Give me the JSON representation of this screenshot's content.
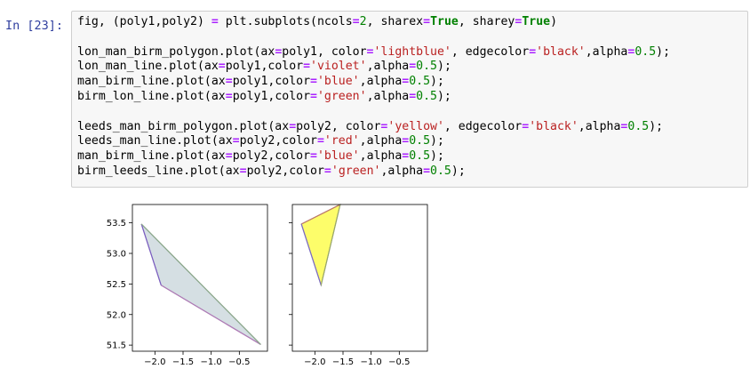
{
  "cell": {
    "prompt": "In [23]:",
    "code_lines": [
      [
        [
          "fig, (poly1,poly2) ",
          ""
        ],
        [
          "=",
          "op"
        ],
        [
          " plt.subplots(ncols",
          ""
        ],
        [
          "=",
          "op"
        ],
        [
          "2",
          "num"
        ],
        [
          ", sharex",
          ""
        ],
        [
          "=",
          "op"
        ],
        [
          "True",
          "kw"
        ],
        [
          ", sharey",
          ""
        ],
        [
          "=",
          "op"
        ],
        [
          "True",
          "kw"
        ],
        [
          ")",
          ""
        ]
      ],
      [],
      [
        [
          "lon_man_birm_polygon.plot(ax",
          ""
        ],
        [
          "=",
          "op"
        ],
        [
          "poly1, color",
          ""
        ],
        [
          "=",
          "op"
        ],
        [
          "'lightblue'",
          "str"
        ],
        [
          ", edgecolor",
          ""
        ],
        [
          "=",
          "op"
        ],
        [
          "'black'",
          "str"
        ],
        [
          ",alpha",
          ""
        ],
        [
          "=",
          "op"
        ],
        [
          "0.5",
          "num"
        ],
        [
          ");",
          ""
        ]
      ],
      [
        [
          "lon_man_line.plot(ax",
          ""
        ],
        [
          "=",
          "op"
        ],
        [
          "poly1,color",
          ""
        ],
        [
          "=",
          "op"
        ],
        [
          "'violet'",
          "str"
        ],
        [
          ",alpha",
          ""
        ],
        [
          "=",
          "op"
        ],
        [
          "0.5",
          "num"
        ],
        [
          ");",
          ""
        ]
      ],
      [
        [
          "man_birm_line.plot(ax",
          ""
        ],
        [
          "=",
          "op"
        ],
        [
          "poly1,color",
          ""
        ],
        [
          "=",
          "op"
        ],
        [
          "'blue'",
          "str"
        ],
        [
          ",alpha",
          ""
        ],
        [
          "=",
          "op"
        ],
        [
          "0.5",
          "num"
        ],
        [
          ");",
          ""
        ]
      ],
      [
        [
          "birm_lon_line.plot(ax",
          ""
        ],
        [
          "=",
          "op"
        ],
        [
          "poly1,color",
          ""
        ],
        [
          "=",
          "op"
        ],
        [
          "'green'",
          "str"
        ],
        [
          ",alpha",
          ""
        ],
        [
          "=",
          "op"
        ],
        [
          "0.5",
          "num"
        ],
        [
          ");",
          ""
        ]
      ],
      [],
      [
        [
          "leeds_man_birm_polygon.plot(ax",
          ""
        ],
        [
          "=",
          "op"
        ],
        [
          "poly2, color",
          ""
        ],
        [
          "=",
          "op"
        ],
        [
          "'yellow'",
          "str"
        ],
        [
          ", edgecolor",
          ""
        ],
        [
          "=",
          "op"
        ],
        [
          "'black'",
          "str"
        ],
        [
          ",alpha",
          ""
        ],
        [
          "=",
          "op"
        ],
        [
          "0.5",
          "num"
        ],
        [
          ");",
          ""
        ]
      ],
      [
        [
          "leeds_man_line.plot(ax",
          ""
        ],
        [
          "=",
          "op"
        ],
        [
          "poly2,color",
          ""
        ],
        [
          "=",
          "op"
        ],
        [
          "'red'",
          "str"
        ],
        [
          ",alpha",
          ""
        ],
        [
          "=",
          "op"
        ],
        [
          "0.5",
          "num"
        ],
        [
          ");",
          ""
        ]
      ],
      [
        [
          "man_birm_line.plot(ax",
          ""
        ],
        [
          "=",
          "op"
        ],
        [
          "poly2,color",
          ""
        ],
        [
          "=",
          "op"
        ],
        [
          "'blue'",
          "str"
        ],
        [
          ",alpha",
          ""
        ],
        [
          "=",
          "op"
        ],
        [
          "0.5",
          "num"
        ],
        [
          ");",
          ""
        ]
      ],
      [
        [
          "birm_leeds_line.plot(ax",
          ""
        ],
        [
          "=",
          "op"
        ],
        [
          "poly2,color",
          ""
        ],
        [
          "=",
          "op"
        ],
        [
          "'green'",
          "str"
        ],
        [
          ",alpha",
          ""
        ],
        [
          "=",
          "op"
        ],
        [
          "0.5",
          "num"
        ],
        [
          ");",
          ""
        ]
      ]
    ]
  },
  "chart_data": [
    {
      "type": "area",
      "title": "",
      "xlabel": "",
      "ylabel": "",
      "xlim": [
        -2.4,
        -0.0
      ],
      "ylim": [
        51.4,
        53.8
      ],
      "xticks": [
        -2.0,
        -1.5,
        -1.0,
        -0.5
      ],
      "xtick_labels": [
        "−2.0",
        "−1.5",
        "−1.0",
        "−0.5"
      ],
      "yticks": [
        51.5,
        52.0,
        52.5,
        53.0,
        53.5
      ],
      "ytick_labels": [
        "51.5",
        "52.0",
        "52.5",
        "53.0",
        "53.5"
      ],
      "polygon": {
        "x": [
          -2.24,
          -1.89,
          -0.12
        ],
        "y": [
          53.48,
          52.48,
          51.51
        ],
        "fill": "#d5dfe3",
        "edge": "#777777"
      },
      "lines": [
        {
          "x": [
            -0.12,
            -1.89
          ],
          "y": [
            51.51,
            52.48
          ],
          "color": "#b07ab8"
        },
        {
          "x": [
            -1.89,
            -2.24
          ],
          "y": [
            52.48,
            53.48
          ],
          "color": "#7b5cc4"
        },
        {
          "x": [
            -2.24,
            -0.12
          ],
          "y": [
            53.48,
            51.51
          ],
          "color": "#8aa88a"
        }
      ]
    },
    {
      "type": "area",
      "title": "",
      "xlabel": "",
      "ylabel": "",
      "xlim": [
        -2.4,
        -0.0
      ],
      "ylim": [
        51.4,
        53.8
      ],
      "xticks": [
        -2.0,
        -1.5,
        -1.0,
        -0.5
      ],
      "xtick_labels": [
        "−2.0",
        "−1.5",
        "−1.0",
        "−0.5"
      ],
      "yticks": [
        51.5,
        52.0,
        52.5,
        53.0,
        53.5
      ],
      "polygon": {
        "x": [
          -1.55,
          -2.24,
          -1.89
        ],
        "y": [
          53.8,
          53.48,
          52.48
        ],
        "fill": "#fdfd6a",
        "edge": "#777777"
      },
      "lines": [
        {
          "x": [
            -1.55,
            -2.24
          ],
          "y": [
            53.8,
            53.48
          ],
          "color": "#c07a6a"
        },
        {
          "x": [
            -2.24,
            -1.89
          ],
          "y": [
            53.48,
            52.48
          ],
          "color": "#7b6ac4"
        },
        {
          "x": [
            -1.89,
            -1.55
          ],
          "y": [
            52.48,
            53.8
          ],
          "color": "#9aa86a"
        }
      ]
    }
  ]
}
